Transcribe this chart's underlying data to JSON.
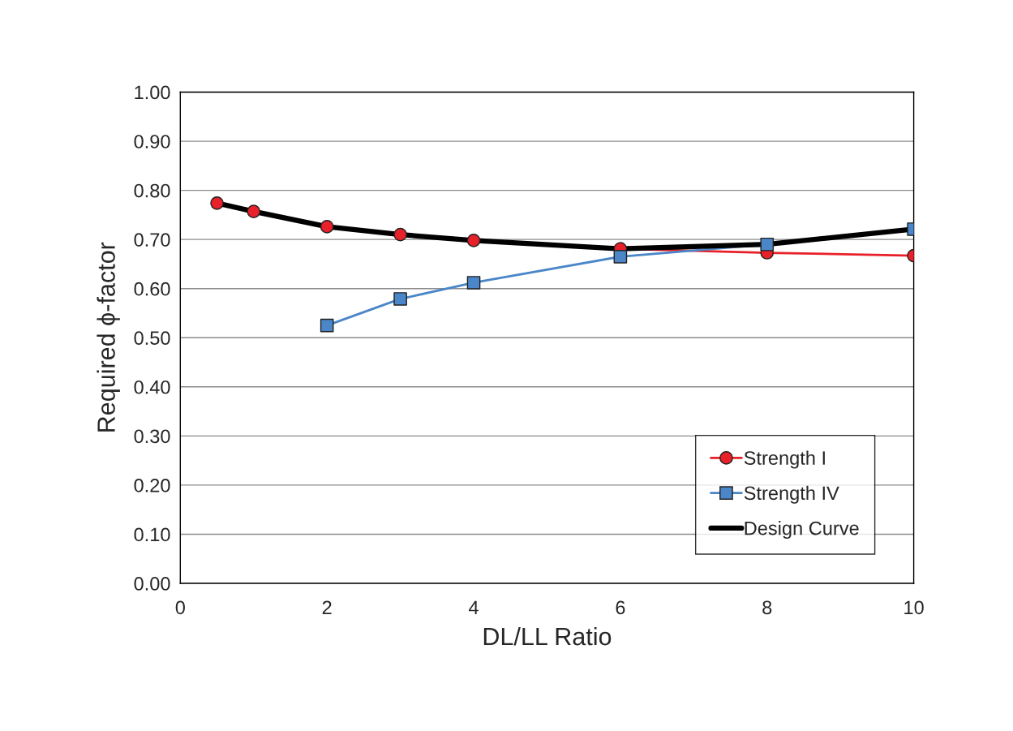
{
  "chart_data": {
    "type": "line",
    "xlabel": "DL/LL Ratio",
    "ylabel": "Required ϕ-factor",
    "x": [
      0.5,
      1,
      2,
      3,
      4,
      6,
      8,
      10
    ],
    "series": [
      {
        "name": "Strength I",
        "color": "#e8202a",
        "marker": "circle",
        "values": [
          0.774,
          0.757,
          0.726,
          0.71,
          0.698,
          0.681,
          0.673,
          0.667
        ]
      },
      {
        "name": "Strength IV",
        "color": "#4a86c8",
        "marker": "square",
        "x": [
          2,
          3,
          4,
          6,
          8,
          10
        ],
        "values": [
          0.525,
          0.579,
          0.612,
          0.665,
          0.69,
          0.721
        ]
      },
      {
        "name": "Design Curve",
        "color": "#000000",
        "marker": "none",
        "values": [
          0.774,
          0.757,
          0.726,
          0.71,
          0.698,
          0.681,
          0.69,
          0.721
        ]
      }
    ],
    "xlim": [
      0,
      10
    ],
    "xticks": [
      0,
      2,
      4,
      6,
      8,
      10
    ],
    "ylim": [
      0,
      1
    ],
    "yticks": [
      {
        "value": 0,
        "label": "0.00"
      },
      {
        "value": 0.1,
        "label": "0.10"
      },
      {
        "value": 0.2,
        "label": "0.20"
      },
      {
        "value": 0.3,
        "label": "0.30"
      },
      {
        "value": 0.4,
        "label": "0.40"
      },
      {
        "value": 0.5,
        "label": "0.50"
      },
      {
        "value": 0.6,
        "label": "0.60"
      },
      {
        "value": 0.7,
        "label": "0.70"
      },
      {
        "value": 0.8,
        "label": "0.80"
      },
      {
        "value": 0.9,
        "label": "0.90"
      },
      {
        "value": 1,
        "label": "1.00"
      }
    ],
    "grid": "y",
    "legend": "bottom right",
    "line_style": "solid"
  }
}
